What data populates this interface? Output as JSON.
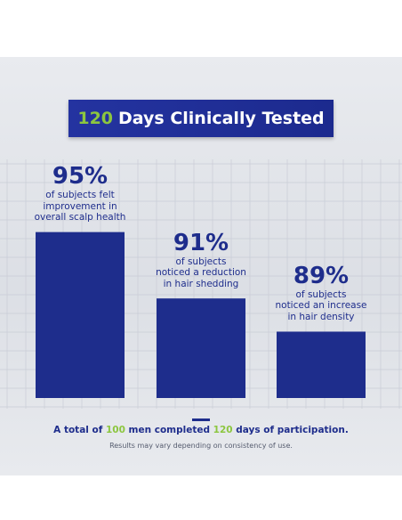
{
  "title": {
    "number": "120",
    "text": "Days Clinically Tested"
  },
  "chart_data": {
    "type": "bar",
    "categories": [
      "of subjects felt\nimprovement in\noverall scalp health",
      "of subjects\nnoticed a reduction\nin hair shedding",
      "of subjects\nnoticed an increase\nin hair density"
    ],
    "values": [
      95,
      91,
      89
    ],
    "value_labels": [
      "95%",
      "91%",
      "89%"
    ],
    "series": [
      {
        "values": [
          95,
          91,
          89
        ]
      }
    ],
    "ylim": [
      85,
      96
    ],
    "grid": true,
    "title": "120 Days Clinically Tested",
    "xlabel": "",
    "ylabel": "",
    "bar_color": "#1e2d8c"
  },
  "summary": {
    "prefix": "A total of",
    "men_count": "100",
    "middle": "men completed",
    "days": "120",
    "suffix": "days of participation."
  },
  "disclaimer": "Results may vary depending on consistency of use.",
  "colors": {
    "brand_blue": "#1e2d8c",
    "accent_green": "#8cc63f"
  }
}
